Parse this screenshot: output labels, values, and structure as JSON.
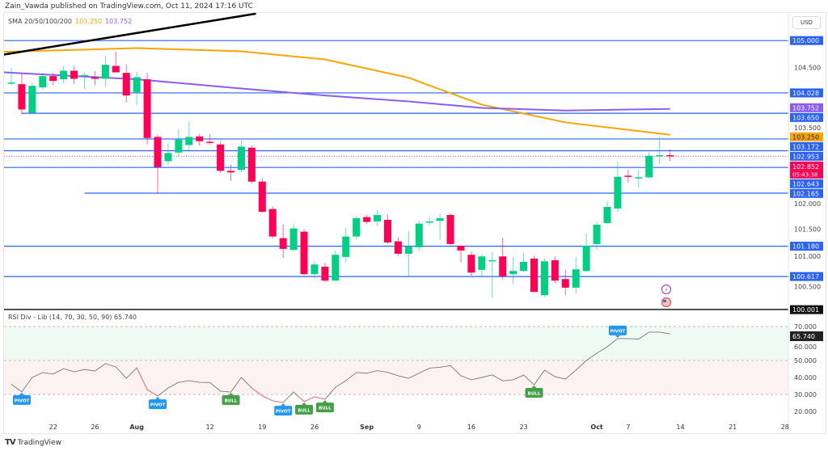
{
  "header": {
    "published": "Zain_Vawda published on TradingView.com, Oct 11, 2024 17:16 UTC"
  },
  "legend": {
    "title": "SMA 20/50/100/200",
    "sma100": "103.250",
    "sma200": "103.752"
  },
  "rsi_legend": {
    "title": "RSI Div - Lib (14, 70, 30, 50, 90)",
    "value": "65.740"
  },
  "currency": "USD",
  "footer": {
    "brand": "TradingView"
  },
  "colors": {
    "up": "#00d084",
    "down": "#ff0055",
    "level": "#2962ff",
    "sma100": "#f7a600",
    "sma200": "#8c5cf5",
    "trend": "#000000",
    "rsi": "#777777",
    "rsi_div": "#ff6b6b",
    "pivot": "#2196f3",
    "bull": "#43a047"
  },
  "chart_data": {
    "type": "candlestick",
    "price_ticks": [
      "104.500",
      "103.500",
      "102.000",
      "101.500",
      "101.000",
      "100.500"
    ],
    "price_tick_values": [
      104.5,
      103.5,
      102.0,
      101.5,
      101.0,
      100.5
    ],
    "levels": [
      {
        "value": 105.0,
        "label": "105.000",
        "from": -1
      },
      {
        "value": 104.028,
        "label": "104.028",
        "from": -1
      },
      {
        "value": 103.65,
        "label": "103.650",
        "from": 1
      },
      {
        "value": 103.172,
        "label": "103.172",
        "from": -1
      },
      {
        "value": 102.953,
        "label": "102.953",
        "from": -1
      },
      {
        "value": 102.643,
        "label": "102.643",
        "from": -1
      },
      {
        "value": 102.165,
        "label": "102.165",
        "from": 7
      },
      {
        "value": 101.18,
        "label": "101.180",
        "from": -1
      },
      {
        "value": 100.617,
        "label": "100.617",
        "from": -1
      }
    ],
    "floor": {
      "value": 100.001,
      "label": "100.001"
    },
    "sma_labels": [
      {
        "value": 103.752,
        "label": "103.752",
        "color": "#8c5cf5"
      },
      {
        "value": 103.25,
        "label": "103.250",
        "color": "#f7a600"
      }
    ],
    "current": {
      "value": 102.852,
      "label": "102.852",
      "countdown": "05:43:38"
    },
    "candles": [
      [
        104.22,
        104.49,
        104.17,
        104.22
      ],
      [
        104.19,
        104.38,
        103.63,
        103.72
      ],
      [
        103.66,
        104.22,
        103.64,
        104.16
      ],
      [
        104.13,
        104.4,
        104.1,
        104.34
      ],
      [
        104.34,
        104.4,
        104.17,
        104.25
      ],
      [
        104.28,
        104.52,
        104.2,
        104.44
      ],
      [
        104.44,
        104.53,
        104.19,
        104.29
      ],
      [
        104.34,
        104.4,
        104.1,
        104.36
      ],
      [
        104.32,
        104.43,
        104.17,
        104.29
      ],
      [
        104.29,
        104.72,
        104.15,
        104.55
      ],
      [
        104.53,
        104.8,
        104.41,
        104.41
      ],
      [
        104.4,
        104.56,
        103.85,
        103.98
      ],
      [
        104.04,
        104.42,
        103.8,
        104.32
      ],
      [
        104.28,
        104.4,
        103.07,
        103.19
      ],
      [
        103.21,
        103.25,
        102.15,
        102.65
      ],
      [
        102.76,
        103.08,
        102.69,
        102.91
      ],
      [
        102.92,
        103.36,
        102.84,
        103.16
      ],
      [
        103.06,
        103.51,
        102.95,
        103.21
      ],
      [
        103.22,
        103.27,
        103.05,
        103.13
      ],
      [
        103.12,
        103.26,
        103.07,
        103.1
      ],
      [
        103.07,
        103.13,
        102.54,
        102.58
      ],
      [
        102.58,
        102.7,
        102.39,
        102.55
      ],
      [
        102.6,
        103.15,
        102.55,
        103.03
      ],
      [
        103.01,
        103.05,
        102.35,
        102.38
      ],
      [
        102.38,
        102.45,
        101.8,
        101.82
      ],
      [
        101.87,
        101.92,
        101.33,
        101.36
      ],
      [
        101.33,
        101.59,
        100.96,
        101.13
      ],
      [
        101.11,
        101.6,
        101.09,
        101.51
      ],
      [
        101.45,
        101.5,
        100.64,
        100.66
      ],
      [
        100.66,
        100.9,
        100.58,
        100.84
      ],
      [
        100.8,
        100.87,
        100.52,
        100.54
      ],
      [
        100.54,
        101.1,
        100.54,
        101.02
      ],
      [
        100.98,
        101.52,
        100.88,
        101.36
      ],
      [
        101.36,
        101.74,
        101.3,
        101.7
      ],
      [
        101.72,
        101.76,
        101.59,
        101.63
      ],
      [
        101.64,
        101.85,
        101.55,
        101.76
      ],
      [
        101.67,
        101.77,
        101.22,
        101.25
      ],
      [
        101.27,
        101.35,
        101.0,
        101.04
      ],
      [
        101.04,
        101.46,
        100.63,
        101.17
      ],
      [
        101.16,
        101.65,
        101.1,
        101.6
      ],
      [
        101.62,
        101.72,
        101.57,
        101.64
      ],
      [
        101.65,
        101.78,
        101.3,
        101.7
      ],
      [
        101.76,
        101.8,
        101.2,
        101.22
      ],
      [
        101.19,
        101.2,
        100.88,
        101.1
      ],
      [
        101.02,
        101.08,
        100.63,
        100.69
      ],
      [
        100.74,
        101.03,
        100.6,
        100.99
      ],
      [
        100.92,
        101.08,
        100.22,
        100.92
      ],
      [
        100.99,
        101.34,
        100.56,
        100.62
      ],
      [
        100.66,
        100.97,
        100.48,
        100.72
      ],
      [
        100.72,
        101.06,
        100.7,
        100.89
      ],
      [
        100.95,
        101.0,
        100.33,
        100.33
      ],
      [
        100.27,
        100.96,
        100.24,
        100.9
      ],
      [
        100.92,
        100.99,
        100.49,
        100.54
      ],
      [
        100.57,
        100.74,
        100.27,
        100.41
      ],
      [
        100.41,
        100.98,
        100.29,
        100.75
      ],
      [
        100.72,
        101.42,
        100.7,
        101.19
      ],
      [
        101.22,
        101.63,
        101.12,
        101.58
      ],
      [
        101.61,
        102.01,
        101.6,
        101.91
      ],
      [
        101.88,
        102.75,
        101.81,
        102.47
      ],
      [
        102.49,
        102.6,
        102.36,
        102.47
      ],
      [
        102.44,
        102.6,
        102.26,
        102.46
      ],
      [
        102.46,
        102.93,
        102.44,
        102.86
      ],
      [
        102.86,
        103.22,
        102.71,
        102.87
      ],
      [
        102.87,
        102.98,
        102.76,
        102.85
      ]
    ],
    "sma100": [
      [
        -0.7,
        104.79
      ],
      [
        12,
        104.86
      ],
      [
        22,
        104.8
      ],
      [
        30,
        104.65
      ],
      [
        38,
        104.31
      ],
      [
        45,
        103.81
      ],
      [
        53,
        103.48
      ],
      [
        63,
        103.25
      ]
    ],
    "sma200": [
      [
        -0.7,
        104.41
      ],
      [
        12,
        104.28
      ],
      [
        22,
        104.11
      ],
      [
        30,
        103.98
      ],
      [
        38,
        103.87
      ],
      [
        45,
        103.75
      ],
      [
        53,
        103.7
      ],
      [
        63,
        103.73
      ]
    ],
    "trendline": [
      [
        -0.7,
        104.74
      ],
      [
        23.4,
        105.5
      ]
    ],
    "x_ticks": [
      {
        "i": 4,
        "label": "22"
      },
      {
        "i": 8,
        "label": "26"
      },
      {
        "i": 12,
        "label": "Aug",
        "bold": true
      },
      {
        "i": 19,
        "label": "12"
      },
      {
        "i": 24,
        "label": "19"
      },
      {
        "i": 29,
        "label": "26"
      },
      {
        "i": 34,
        "label": "Sep",
        "bold": true
      },
      {
        "i": 39,
        "label": "9"
      },
      {
        "i": 44,
        "label": "16"
      },
      {
        "i": 49,
        "label": "23"
      },
      {
        "i": 56,
        "label": "Oct",
        "bold": true
      },
      {
        "i": 59,
        "label": "7"
      },
      {
        "i": 64,
        "label": "14"
      },
      {
        "i": 69,
        "label": "21"
      },
      {
        "i": 74,
        "label": "28"
      }
    ],
    "rsi": {
      "levels": [
        70,
        50,
        30
      ],
      "ticks": [
        "70.000",
        "60.000",
        "50.000",
        "40.000",
        "30.000",
        "20.000"
      ],
      "tick_values": [
        70,
        60,
        50,
        40,
        30,
        20
      ],
      "current_label": "65.740",
      "current": 65.74,
      "values": [
        36,
        31.5,
        40,
        42.9,
        42,
        45.2,
        43.3,
        44.7,
        43.8,
        48.1,
        46.2,
        39.5,
        45.7,
        32.9,
        29,
        33.8,
        37.1,
        38.1,
        37.1,
        37,
        31.9,
        31.4,
        40,
        33.8,
        29.2,
        26.2,
        25.2,
        31.4,
        25.8,
        28.6,
        27.1,
        34.2,
        38.1,
        42.9,
        42.5,
        44,
        43,
        41,
        39.5,
        42.5,
        45.5,
        46,
        47,
        41,
        38.6,
        40,
        41.5,
        38,
        38.6,
        41.4,
        35.7,
        44.3,
        40.5,
        39,
        44.3,
        50,
        54.3,
        58.1,
        62.9,
        62.9,
        62.6,
        66.7,
        66.7,
        65.7
      ],
      "div_segments": [
        [
          12,
          14
        ],
        [
          23,
          26
        ],
        [
          27,
          30
        ]
      ],
      "signals": [
        {
          "i": 1,
          "label": "PIVOT",
          "type": "pivot",
          "pos": "below"
        },
        {
          "i": 14,
          "label": "PIVOT",
          "type": "pivot",
          "pos": "below"
        },
        {
          "i": 21,
          "label": "BULL",
          "type": "bull",
          "pos": "below"
        },
        {
          "i": 26,
          "label": "PIVOT",
          "type": "pivot",
          "pos": "below"
        },
        {
          "i": 28,
          "label": "BULL",
          "type": "bull",
          "pos": "below"
        },
        {
          "i": 30,
          "label": "BULL",
          "type": "bull",
          "pos": "below"
        },
        {
          "i": 50,
          "label": "BULL",
          "type": "bull",
          "pos": "below"
        },
        {
          "i": 58,
          "label": "PIVOT",
          "type": "pivot",
          "pos": "above"
        }
      ]
    }
  }
}
